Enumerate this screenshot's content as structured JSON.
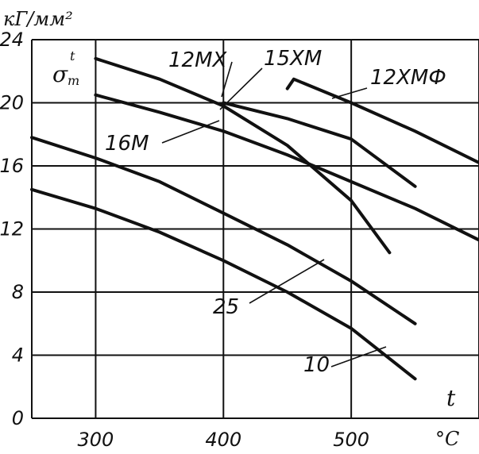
{
  "chart_data": {
    "type": "line",
    "title": "",
    "ylabel_unit": "кГ/мм²",
    "ylabel_symbol": "σ",
    "ylabel_subscript": "т",
    "ylabel_superscript": "t",
    "xlabel_symbol": "t",
    "xlabel_unit": "°C",
    "xlim": [
      250,
      600
    ],
    "ylim": [
      0,
      24
    ],
    "x_ticks": [
      300,
      400,
      500
    ],
    "y_ticks": [
      0,
      4,
      8,
      12,
      16,
      20,
      24
    ],
    "grid": true,
    "series": [
      {
        "name": "12МХ",
        "x": [
          300,
          350,
          400,
          450,
          500,
          530
        ],
        "y": [
          22.8,
          21.5,
          19.8,
          17.3,
          13.8,
          10.5
        ]
      },
      {
        "name": "15ХМ",
        "x": [
          400,
          450,
          500,
          550
        ],
        "y": [
          20.0,
          19.0,
          17.7,
          14.7
        ]
      },
      {
        "name": "12ХМФ",
        "x": [
          450,
          455,
          500,
          550,
          600
        ],
        "y": [
          20.9,
          21.5,
          20.0,
          18.2,
          16.2
        ]
      },
      {
        "name": "16М",
        "x": [
          300,
          350,
          400,
          450,
          500,
          550,
          600
        ],
        "y": [
          20.5,
          19.4,
          18.2,
          16.7,
          15.0,
          13.3,
          11.3
        ]
      },
      {
        "name": "25",
        "x": [
          250,
          300,
          350,
          400,
          450,
          500,
          550
        ],
        "y": [
          17.8,
          16.5,
          15.0,
          13.0,
          11.0,
          8.7,
          6.0
        ]
      },
      {
        "name": "10",
        "x": [
          250,
          300,
          350,
          400,
          450,
          500,
          550
        ],
        "y": [
          14.5,
          13.3,
          11.8,
          10.0,
          8.0,
          5.7,
          2.5
        ]
      }
    ]
  }
}
